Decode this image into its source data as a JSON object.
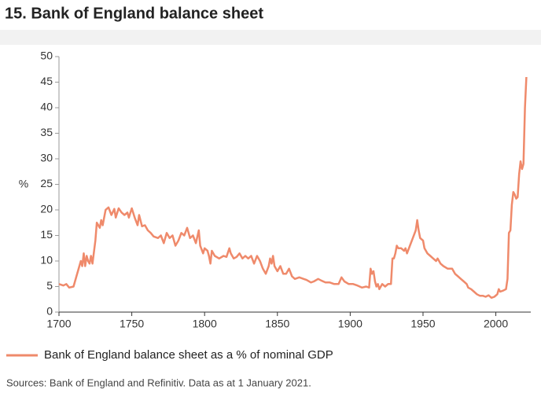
{
  "chart_data": {
    "type": "line",
    "title": "15. Bank of England balance sheet",
    "y_label": "%",
    "source": "Sources: Bank of England and Refinitiv. Data as at 1 January 2021.",
    "xlim": [
      1700,
      2024
    ],
    "xticks": [
      1700,
      1750,
      1800,
      1850,
      1900,
      1950,
      2000
    ],
    "ylim": [
      0,
      50
    ],
    "yticks": [
      0,
      5,
      10,
      15,
      20,
      25,
      30,
      35,
      40,
      45,
      50
    ],
    "x": [
      1700,
      1703,
      1705,
      1707,
      1710,
      1712,
      1715,
      1716,
      1717,
      1718,
      1719,
      1720,
      1721,
      1722,
      1723,
      1725,
      1726,
      1728,
      1729,
      1730,
      1732,
      1734,
      1736,
      1738,
      1739,
      1741,
      1743,
      1745,
      1747,
      1748,
      1750,
      1752,
      1754,
      1755,
      1757,
      1759,
      1761,
      1763,
      1765,
      1768,
      1770,
      1772,
      1774,
      1776,
      1778,
      1780,
      1782,
      1784,
      1786,
      1788,
      1790,
      1792,
      1794,
      1796,
      1797,
      1799,
      1800,
      1802,
      1803,
      1804,
      1805,
      1807,
      1810,
      1813,
      1815,
      1817,
      1818,
      1820,
      1822,
      1824,
      1826,
      1828,
      1830,
      1832,
      1834,
      1836,
      1838,
      1840,
      1842,
      1844,
      1845,
      1846,
      1847,
      1848,
      1850,
      1852,
      1854,
      1856,
      1858,
      1860,
      1862,
      1865,
      1868,
      1870,
      1873,
      1875,
      1878,
      1880,
      1883,
      1886,
      1889,
      1892,
      1894,
      1896,
      1899,
      1902,
      1905,
      1908,
      1911,
      1913,
      1914,
      1915,
      1916,
      1917,
      1918,
      1919,
      1920,
      1922,
      1924,
      1926,
      1928,
      1929,
      1930,
      1931,
      1932,
      1933,
      1935,
      1937,
      1938,
      1939,
      1941,
      1943,
      1945,
      1946,
      1947,
      1948,
      1950,
      1951,
      1953,
      1955,
      1957,
      1959,
      1960,
      1962,
      1964,
      1967,
      1970,
      1972,
      1974,
      1976,
      1978,
      1980,
      1981,
      1983,
      1985,
      1987,
      1989,
      1991,
      1993,
      1995,
      1997,
      1999,
      2001,
      2002,
      2003,
      2005,
      2007,
      2008,
      2009,
      2010,
      2011,
      2012,
      2013,
      2014,
      2015,
      2016,
      2017,
      2018,
      2019,
      2020,
      2021
    ],
    "series": [
      {
        "name": "Bank of England balance sheet as a % of nominal GDP",
        "color": "#ef8a6b",
        "values": [
          5.5,
          5.2,
          5.5,
          4.8,
          5,
          7,
          10,
          9,
          11.5,
          9,
          11,
          10,
          9.5,
          11,
          9.5,
          14,
          17.5,
          16.5,
          18,
          17,
          20,
          20.5,
          19,
          20.2,
          18.5,
          20.3,
          19.5,
          19,
          19.5,
          18.5,
          20.3,
          18.5,
          17,
          19,
          16.8,
          17,
          16,
          15.5,
          14.8,
          14.5,
          15,
          13.5,
          15.5,
          14.5,
          15,
          13,
          14,
          15.5,
          15,
          16.5,
          14.5,
          15,
          13.5,
          16,
          13,
          11.5,
          12.5,
          12,
          11,
          9.5,
          12,
          11,
          10.5,
          11,
          10.8,
          12.5,
          11.5,
          10.5,
          10.8,
          11.5,
          10.5,
          11,
          10.5,
          11,
          9.5,
          11,
          10,
          8.5,
          7.5,
          9,
          10.5,
          9.5,
          11,
          9,
          8,
          9,
          7.5,
          7.5,
          8.5,
          7,
          6.5,
          6.8,
          6.5,
          6.3,
          5.8,
          6,
          6.5,
          6.2,
          5.8,
          5.8,
          5.5,
          5.5,
          6.8,
          6,
          5.5,
          5.5,
          5.2,
          4.8,
          5,
          4.8,
          8.5,
          7.5,
          8,
          6,
          5,
          5.5,
          4.5,
          5.5,
          5,
          5.5,
          5.5,
          10.5,
          10.5,
          11.5,
          13,
          12.5,
          12.5,
          12,
          12.5,
          11.5,
          13,
          14.5,
          16,
          18,
          16,
          14.5,
          14,
          12.5,
          11.5,
          11,
          10.5,
          10,
          10.5,
          9.5,
          9,
          8.5,
          8.5,
          7.5,
          7,
          6.5,
          6,
          5.5,
          4.8,
          4.5,
          4,
          3.5,
          3.2,
          3.2,
          3,
          3.3,
          2.8,
          3,
          3.5,
          4.5,
          4,
          4.2,
          4.5,
          6.5,
          15.5,
          16,
          21,
          23.5,
          23,
          22.2,
          22.5,
          27,
          29.5,
          28,
          29,
          40,
          46
        ]
      }
    ]
  }
}
